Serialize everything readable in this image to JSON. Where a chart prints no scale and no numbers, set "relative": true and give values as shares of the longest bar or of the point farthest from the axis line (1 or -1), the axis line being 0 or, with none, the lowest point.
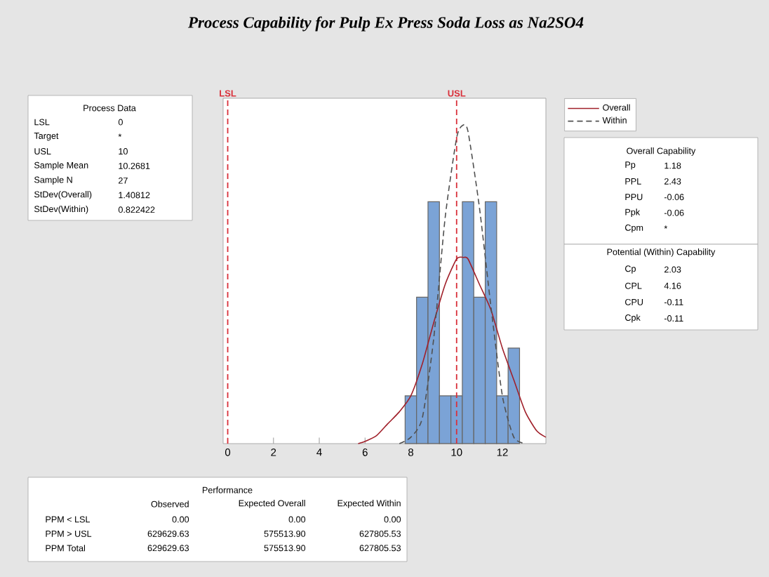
{
  "chart_data": {
    "type": "histogram",
    "title": "Process Capability for Pulp Ex Press Soda Loss as Na2SO4",
    "relative": true,
    "color": "#7ba3d6",
    "bins": [
      7.75,
      8.25,
      8.75,
      9.25,
      9.75,
      10.25,
      10.75,
      11.25,
      11.75,
      12.25,
      12.75
    ],
    "values": [
      0.15,
      0.46,
      0.76,
      0.15,
      0.15,
      0.76,
      0.46,
      0.76,
      0.15,
      0.3
    ],
    "series": [
      {
        "name": "Overall",
        "type": "line",
        "color": "#a0202a",
        "line_style": "solid",
        "x": [
          5.7,
          6,
          6.5,
          7,
          7.5,
          8,
          8.5,
          9,
          9.5,
          10,
          10.3,
          10.5,
          11,
          11.5,
          12,
          12.5,
          13,
          13.5,
          13.9
        ],
        "values": [
          0,
          0.007,
          0.025,
          0.063,
          0.1,
          0.15,
          0.25,
          0.38,
          0.5,
          0.58,
          0.585,
          0.58,
          0.5,
          0.42,
          0.3,
          0.2,
          0.1,
          0.04,
          0.02
        ]
      },
      {
        "name": "Within",
        "type": "line",
        "color": "#505050",
        "line_style": "dashed",
        "x": [
          7.5,
          8,
          8.5,
          9,
          9.5,
          10,
          10.27,
          10.5,
          11,
          11.5,
          12,
          12.5,
          13
        ],
        "values": [
          0,
          0.02,
          0.08,
          0.33,
          0.71,
          0.96,
          1,
          0.98,
          0.74,
          0.43,
          0.15,
          0.02,
          0
        ]
      }
    ],
    "xlim": [
      -0.2,
      13.9
    ],
    "xticks": [
      0,
      2,
      4,
      6,
      8,
      10,
      12
    ],
    "ref_lines": [
      {
        "axis": "x",
        "value": 0,
        "label": "LSL",
        "color": "#d9303a",
        "line_style": "dashed"
      },
      {
        "axis": "x",
        "value": 10,
        "label": "USL",
        "color": "#d9303a",
        "line_style": "dashed"
      }
    ],
    "legend": "right",
    "annotations": [
      "Process Data",
      "LSL",
      "0",
      "Target",
      "*",
      "USL",
      "10",
      "Sample Mean",
      "10.2681",
      "Sample N",
      "27",
      "StDev(Overall)",
      "1.40812",
      "StDev(Within)",
      "0.822422",
      "Overall Capability",
      "Pp",
      "1.18",
      "PPL",
      "2.43",
      "PPU",
      "-0.06",
      "Ppk",
      "-0.06",
      "Cpm",
      "*",
      "Potential (Within) Capability",
      "Cp",
      "2.03",
      "CPL",
      "4.16",
      "CPU",
      "-0.11",
      "Cpk",
      "-0.11",
      "Performance",
      "Observed",
      "Expected Overall",
      "Expected Within",
      "PPM < LSL",
      "0.00",
      "0.00",
      "0.00",
      "PPM > USL",
      "629629.63",
      "575513.90",
      "627805.53",
      "PPM Total",
      "629629.63",
      "575513.90",
      "627805.53"
    ]
  }
}
